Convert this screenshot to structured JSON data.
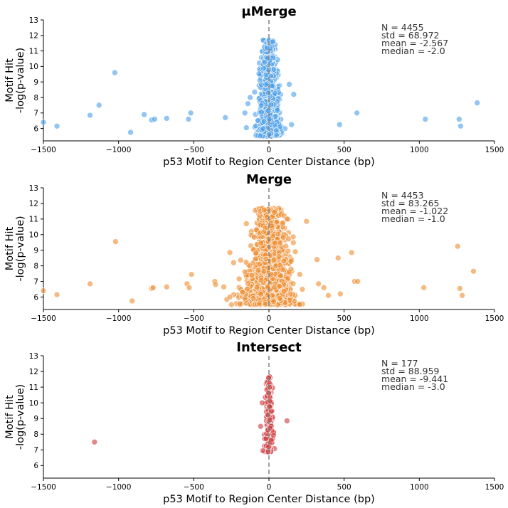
{
  "chart_data": [
    {
      "type": "scatter",
      "title": "μMerge",
      "xlabel": "p53 Motif to Region Center Distance (bp)",
      "ylabel": [
        "Motif Hit",
        "-log(p-value)"
      ],
      "xlim": [
        -1500,
        1500
      ],
      "ylim": [
        5.2,
        13
      ],
      "xticks": [
        -1500,
        -1000,
        -500,
        0,
        500,
        1000,
        1500
      ],
      "yticks": [
        6,
        7,
        8,
        9,
        10,
        11,
        12,
        13
      ],
      "reference_line_x": 0,
      "color": "#4b9eea",
      "stats": [
        "N = 4455",
        "std = 68.972",
        "mean = -2.567",
        "median = -2.0"
      ],
      "outliers": [
        [
          -1500,
          6.4
        ],
        [
          -1410,
          6.15
        ],
        [
          -1190,
          6.85
        ],
        [
          -1130,
          7.5
        ],
        [
          -1025,
          9.6
        ],
        [
          -920,
          5.75
        ],
        [
          -830,
          6.9
        ],
        [
          -780,
          6.55
        ],
        [
          -760,
          6.6
        ],
        [
          -680,
          6.65
        ],
        [
          -535,
          6.6
        ],
        [
          -520,
          7.0
        ],
        [
          -290,
          6.7
        ],
        [
          -160,
          7.0
        ],
        [
          -150,
          6.05
        ],
        [
          -140,
          7.6
        ],
        [
          -125,
          8.0
        ],
        [
          -95,
          8.35
        ],
        [
          135,
          8.85
        ],
        [
          165,
          8.2
        ],
        [
          150,
          6.25
        ],
        [
          470,
          6.25
        ],
        [
          585,
          7.0
        ],
        [
          1040,
          6.6
        ],
        [
          1265,
          6.6
        ],
        [
          1275,
          6.15
        ],
        [
          1385,
          7.65
        ]
      ],
      "core": {
        "n": 900,
        "x_sd": 40,
        "y_range": [
          5.5,
          11.7
        ]
      }
    },
    {
      "type": "scatter",
      "title": "Merge",
      "xlabel": "p53 Motif to Region Center Distance (bp)",
      "ylabel": [
        "Motif Hit",
        "-log(p-value)"
      ],
      "xlim": [
        -1500,
        1500
      ],
      "ylim": [
        5.2,
        13
      ],
      "xticks": [
        -1500,
        -1000,
        -500,
        0,
        500,
        1000,
        1500
      ],
      "yticks": [
        6,
        7,
        8,
        9,
        10,
        11,
        12,
        13
      ],
      "reference_line_x": 0,
      "color": "#ef8c2f",
      "stats": [
        "N = 4453",
        "std = 83.265",
        "mean = -1.022",
        "median = -1.0"
      ],
      "outliers": [
        [
          -1500,
          6.4
        ],
        [
          -1410,
          6.15
        ],
        [
          -1190,
          6.85
        ],
        [
          -1020,
          9.55
        ],
        [
          -910,
          5.75
        ],
        [
          -780,
          6.55
        ],
        [
          -770,
          6.6
        ],
        [
          -680,
          6.65
        ],
        [
          -545,
          6.85
        ],
        [
          -530,
          6.6
        ],
        [
          -515,
          7.45
        ],
        [
          -360,
          7.0
        ],
        [
          -355,
          6.8
        ],
        [
          -300,
          6.65
        ],
        [
          -280,
          5.85
        ],
        [
          -260,
          8.85
        ],
        [
          -235,
          8.2
        ],
        [
          320,
          8.4
        ],
        [
          330,
          6.85
        ],
        [
          365,
          6.6
        ],
        [
          395,
          6.1
        ],
        [
          460,
          8.5
        ],
        [
          475,
          6.2
        ],
        [
          550,
          8.85
        ],
        [
          570,
          7.0
        ],
        [
          590,
          7.0
        ],
        [
          1030,
          6.6
        ],
        [
          1255,
          9.25
        ],
        [
          1270,
          6.55
        ],
        [
          1285,
          6.1
        ],
        [
          1360,
          7.65
        ],
        [
          -150,
          10.7
        ],
        [
          120,
          11.0
        ],
        [
          250,
          10.85
        ],
        [
          -260,
          6.0
        ]
      ],
      "core": {
        "n": 1100,
        "x_sd": 90,
        "y_range": [
          5.5,
          11.7
        ]
      }
    },
    {
      "type": "scatter",
      "title": "Intersect",
      "xlabel": "p53 Motif to Region Center Distance (bp)",
      "ylabel": [
        "Motif Hit",
        "-log(p-value)"
      ],
      "xlim": [
        -1500,
        1500
      ],
      "ylim": [
        5.2,
        13
      ],
      "xticks": [
        -1500,
        -1000,
        -500,
        0,
        500,
        1000,
        1500
      ],
      "yticks": [
        6,
        7,
        8,
        9,
        10,
        11,
        12,
        13
      ],
      "reference_line_x": 0,
      "color": "#d0393a",
      "stats": [
        "N = 177",
        "std = 88.959",
        "mean = -9.441",
        "median = -3.0"
      ],
      "outliers": [
        [
          -1160,
          7.5
        ],
        [
          120,
          8.85
        ],
        [
          -55,
          8.5
        ],
        [
          -40,
          6.95
        ],
        [
          -45,
          10.0
        ]
      ],
      "core": {
        "n": 172,
        "x_sd": 16,
        "y_range": [
          6.85,
          11.7
        ]
      }
    }
  ]
}
